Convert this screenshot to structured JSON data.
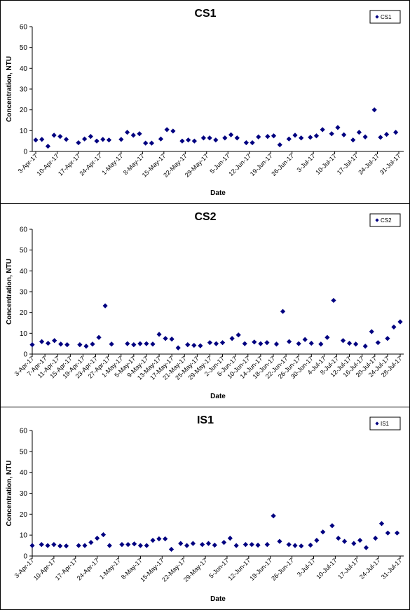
{
  "chart_data": [
    {
      "type": "scatter",
      "title": "CS1",
      "xlabel": "Date",
      "ylabel": "Concentration, NTU",
      "ylim": [
        0,
        60
      ],
      "yticks": [
        0,
        10,
        20,
        30,
        40,
        50,
        60
      ],
      "grid": false,
      "legend_position": "top-right",
      "x_range": [
        "3-Apr-17",
        "31-Jul-17"
      ],
      "x_tick_labels": [
        "3-Apr-17",
        "10-Apr-17",
        "17-Apr-17",
        "24-Apr-17",
        "1-May-17",
        "8-May-17",
        "15-May-17",
        "22-May-17",
        "29-May-17",
        "5-Jun-17",
        "12-Jun-17",
        "19-Jun-17",
        "26-Jun-17",
        "3-Jul-17",
        "10-Jul-17",
        "17-Jul-17",
        "24-Jul-17",
        "31-Jul-17"
      ],
      "series": [
        {
          "name": "CS1",
          "color": "#000080",
          "marker": "diamond",
          "points": [
            [
              "3-Apr-17",
              5.5
            ],
            [
              "5-Apr-17",
              5.8
            ],
            [
              "7-Apr-17",
              2.5
            ],
            [
              "9-Apr-17",
              7.8
            ],
            [
              "11-Apr-17",
              7.2
            ],
            [
              "13-Apr-17",
              5.8
            ],
            [
              "17-Apr-17",
              4.2
            ],
            [
              "19-Apr-17",
              6
            ],
            [
              "21-Apr-17",
              7.2
            ],
            [
              "23-Apr-17",
              5
            ],
            [
              "25-Apr-17",
              5.8
            ],
            [
              "27-Apr-17",
              5.5
            ],
            [
              "1-May-17",
              5.8
            ],
            [
              "3-May-17",
              9.2
            ],
            [
              "5-May-17",
              7.8
            ],
            [
              "7-May-17",
              8.5
            ],
            [
              "9-May-17",
              4
            ],
            [
              "11-May-17",
              4
            ],
            [
              "14-May-17",
              6
            ],
            [
              "16-May-17",
              10.5
            ],
            [
              "18-May-17",
              9.8
            ],
            [
              "21-May-17",
              5
            ],
            [
              "23-May-17",
              5.5
            ],
            [
              "25-May-17",
              5
            ],
            [
              "28-May-17",
              6.5
            ],
            [
              "30-May-17",
              6.5
            ],
            [
              "1-Jun-17",
              5.5
            ],
            [
              "4-Jun-17",
              6.5
            ],
            [
              "6-Jun-17",
              8
            ],
            [
              "8-Jun-17",
              6.5
            ],
            [
              "11-Jun-17",
              4.2
            ],
            [
              "13-Jun-17",
              4.2
            ],
            [
              "15-Jun-17",
              7
            ],
            [
              "18-Jun-17",
              7.2
            ],
            [
              "20-Jun-17",
              7.5
            ],
            [
              "22-Jun-17",
              3.2
            ],
            [
              "25-Jun-17",
              6
            ],
            [
              "27-Jun-17",
              7.8
            ],
            [
              "29-Jun-17",
              6.5
            ],
            [
              "2-Jul-17",
              6.8
            ],
            [
              "4-Jul-17",
              7.5
            ],
            [
              "6-Jul-17",
              10.5
            ],
            [
              "9-Jul-17",
              8.5
            ],
            [
              "11-Jul-17",
              11.5
            ],
            [
              "13-Jul-17",
              8
            ],
            [
              "16-Jul-17",
              5.5
            ],
            [
              "18-Jul-17",
              9.2
            ],
            [
              "20-Jul-17",
              7
            ],
            [
              "23-Jul-17",
              20
            ],
            [
              "25-Jul-17",
              6.8
            ],
            [
              "27-Jul-17",
              8.2
            ],
            [
              "30-Jul-17",
              9.2
            ]
          ]
        }
      ]
    },
    {
      "type": "scatter",
      "title": "CS2",
      "xlabel": "Date",
      "ylabel": "Concentration, NTU",
      "ylim": [
        0,
        60
      ],
      "yticks": [
        0,
        10,
        20,
        30,
        40,
        50,
        60
      ],
      "grid": false,
      "legend_position": "top-right",
      "x_range": [
        "3-Apr-17",
        "28-Jul-17"
      ],
      "x_tick_labels": [
        "3-Apr-17",
        "7-Apr-17",
        "11-Apr-17",
        "15-Apr-17",
        "19-Apr-17",
        "23-Apr-17",
        "27-Apr-17",
        "1-May-17",
        "5-May-17",
        "9-May-17",
        "13-May-17",
        "17-May-17",
        "21-May-17",
        "25-May-17",
        "29-May-17",
        "2-Jun-17",
        "6-Jun-17",
        "10-Jun-17",
        "14-Jun-17",
        "18-Jun-17",
        "22-Jun-17",
        "26-Jun-17",
        "30-Jun-17",
        "4-Jul-17",
        "8-Jul-17",
        "12-Jul-17",
        "16-Jul-17",
        "20-Jul-17",
        "24-Jul-17",
        "28-Jul-17"
      ],
      "series": [
        {
          "name": "CS2",
          "color": "#000080",
          "marker": "diamond",
          "points": [
            [
              "3-Apr-17",
              4.5
            ],
            [
              "6-Apr-17",
              6
            ],
            [
              "8-Apr-17",
              5.2
            ],
            [
              "10-Apr-17",
              6.5
            ],
            [
              "12-Apr-17",
              4.8
            ],
            [
              "14-Apr-17",
              4.5
            ],
            [
              "18-Apr-17",
              4.5
            ],
            [
              "20-Apr-17",
              3.8
            ],
            [
              "22-Apr-17",
              4.8
            ],
            [
              "24-Apr-17",
              8
            ],
            [
              "26-Apr-17",
              23.2
            ],
            [
              "28-Apr-17",
              4.8
            ],
            [
              "3-May-17",
              5
            ],
            [
              "5-May-17",
              4.5
            ],
            [
              "7-May-17",
              5
            ],
            [
              "9-May-17",
              5
            ],
            [
              "11-May-17",
              4.8
            ],
            [
              "13-May-17",
              9.5
            ],
            [
              "15-May-17",
              7.5
            ],
            [
              "17-May-17",
              7.2
            ],
            [
              "19-May-17",
              3
            ],
            [
              "22-May-17",
              4.5
            ],
            [
              "24-May-17",
              4.2
            ],
            [
              "26-May-17",
              4
            ],
            [
              "29-May-17",
              5.5
            ],
            [
              "31-May-17",
              5
            ],
            [
              "2-Jun-17",
              5.5
            ],
            [
              "5-Jun-17",
              7.5
            ],
            [
              "7-Jun-17",
              9.2
            ],
            [
              "9-Jun-17",
              5
            ],
            [
              "12-Jun-17",
              5.8
            ],
            [
              "14-Jun-17",
              5
            ],
            [
              "16-Jun-17",
              5.5
            ],
            [
              "19-Jun-17",
              4.8
            ],
            [
              "21-Jun-17",
              20.5
            ],
            [
              "23-Jun-17",
              6
            ],
            [
              "26-Jun-17",
              5
            ],
            [
              "28-Jun-17",
              7
            ],
            [
              "30-Jun-17",
              5.2
            ],
            [
              "3-Jul-17",
              4.8
            ],
            [
              "5-Jul-17",
              8
            ],
            [
              "7-Jul-17",
              25.8
            ],
            [
              "10-Jul-17",
              6.5
            ],
            [
              "12-Jul-17",
              5.2
            ],
            [
              "14-Jul-17",
              4.8
            ],
            [
              "17-Jul-17",
              3.8
            ],
            [
              "19-Jul-17",
              10.8
            ],
            [
              "21-Jul-17",
              5.5
            ],
            [
              "24-Jul-17",
              7.5
            ],
            [
              "26-Jul-17",
              13
            ],
            [
              "28-Jul-17",
              15.5
            ]
          ]
        }
      ]
    },
    {
      "type": "scatter",
      "title": "IS1",
      "xlabel": "Date",
      "ylabel": "Concentration, NTU",
      "ylim": [
        0,
        60
      ],
      "yticks": [
        0,
        10,
        20,
        30,
        40,
        50,
        60
      ],
      "grid": false,
      "legend_position": "top-right",
      "x_range": [
        "3-Apr-17",
        "31-Jul-17"
      ],
      "x_tick_labels": [
        "3-Apr-17",
        "10-Apr-17",
        "17-Apr-17",
        "24-Apr-17",
        "1-May-17",
        "8-May-17",
        "15-May-17",
        "22-May-17",
        "29-May-17",
        "5-Jun-17",
        "12-Jun-17",
        "19-Jun-17",
        "26-Jun-17",
        "3-Jul-17",
        "10-Jul-17",
        "17-Jul-17",
        "24-Jul-17",
        "31-Jul-17"
      ],
      "series": [
        {
          "name": "IS1",
          "color": "#000080",
          "marker": "diamond",
          "points": [
            [
              "3-Apr-17",
              5
            ],
            [
              "6-Apr-17",
              5.5
            ],
            [
              "8-Apr-17",
              5
            ],
            [
              "10-Apr-17",
              5.5
            ],
            [
              "12-Apr-17",
              4.8
            ],
            [
              "14-Apr-17",
              4.8
            ],
            [
              "18-Apr-17",
              5
            ],
            [
              "20-Apr-17",
              5
            ],
            [
              "22-Apr-17",
              6.5
            ],
            [
              "24-Apr-17",
              8.5
            ],
            [
              "26-Apr-17",
              10.2
            ],
            [
              "28-Apr-17",
              5
            ],
            [
              "2-May-17",
              5.5
            ],
            [
              "4-May-17",
              5.5
            ],
            [
              "6-May-17",
              5.8
            ],
            [
              "8-May-17",
              5
            ],
            [
              "10-May-17",
              5
            ],
            [
              "12-May-17",
              7.5
            ],
            [
              "14-May-17",
              8.2
            ],
            [
              "16-May-17",
              8.2
            ],
            [
              "18-May-17",
              3.2
            ],
            [
              "21-May-17",
              6
            ],
            [
              "23-May-17",
              5
            ],
            [
              "25-May-17",
              6
            ],
            [
              "28-May-17",
              5.5
            ],
            [
              "30-May-17",
              6
            ],
            [
              "1-Jun-17",
              5.2
            ],
            [
              "4-Jun-17",
              6.5
            ],
            [
              "6-Jun-17",
              8.5
            ],
            [
              "8-Jun-17",
              5
            ],
            [
              "11-Jun-17",
              5.5
            ],
            [
              "13-Jun-17",
              5.5
            ],
            [
              "15-Jun-17",
              5.2
            ],
            [
              "18-Jun-17",
              5.5
            ],
            [
              "20-Jun-17",
              19.2
            ],
            [
              "22-Jun-17",
              7
            ],
            [
              "25-Jun-17",
              5.5
            ],
            [
              "27-Jun-17",
              5
            ],
            [
              "29-Jun-17",
              4.8
            ],
            [
              "2-Jul-17",
              5.2
            ],
            [
              "4-Jul-17",
              7.5
            ],
            [
              "6-Jul-17",
              11.5
            ],
            [
              "9-Jul-17",
              14.5
            ],
            [
              "11-Jul-17",
              8.5
            ],
            [
              "13-Jul-17",
              7
            ],
            [
              "16-Jul-17",
              6
            ],
            [
              "18-Jul-17",
              7.5
            ],
            [
              "20-Jul-17",
              4
            ],
            [
              "23-Jul-17",
              8.5
            ],
            [
              "25-Jul-17",
              15.5
            ],
            [
              "27-Jul-17",
              11
            ],
            [
              "30-Jul-17",
              11
            ]
          ]
        }
      ]
    }
  ]
}
